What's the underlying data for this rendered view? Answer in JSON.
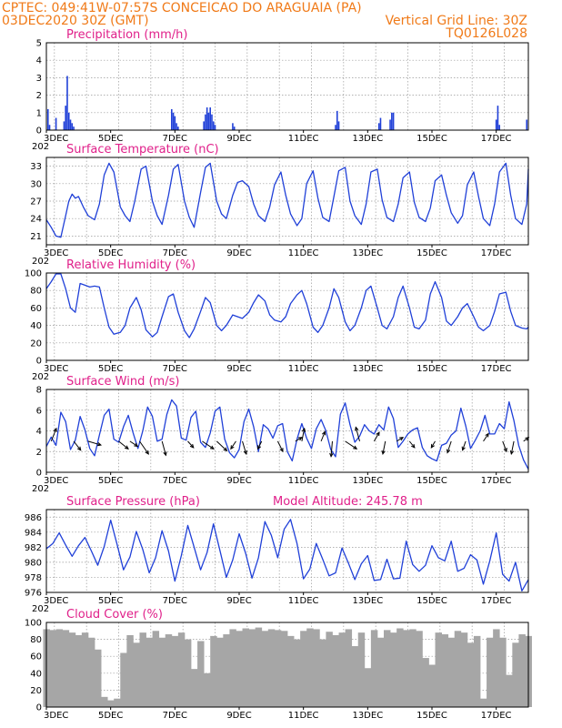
{
  "header": {
    "line1_left": "CPTEC:   049:41W-07:57S   CONCEICAO DO ARAGUAIA (PA)",
    "line2_left": "03DEC2020 30Z (GMT)",
    "line2_right": "Vertical Grid Line: 30Z",
    "line3_right": "TQ0126L028"
  },
  "colors": {
    "header": "#f07a18",
    "title": "#e0208a",
    "line": "#2040d8",
    "cloud": "#a6a6a6",
    "arrow": "#000000"
  },
  "x_axis": {
    "start_day": 3,
    "end_day": 18,
    "labels": [
      "3DEC",
      "5DEC",
      "7DEC",
      "9DEC",
      "11DEC",
      "13DEC",
      "15DEC",
      "17DEC"
    ],
    "label_days": [
      3,
      5,
      7,
      9,
      11,
      13,
      15,
      17
    ],
    "corner_label": "202"
  },
  "chart_data": [
    {
      "type": "bar",
      "title": "Precipitation (mm/h)",
      "ylim": [
        0,
        5
      ],
      "yticks": [
        0,
        1,
        2,
        3,
        4,
        5
      ],
      "x": [
        3.05,
        3.1,
        3.3,
        3.55,
        3.6,
        3.65,
        3.7,
        3.75,
        3.8,
        3.85,
        6.9,
        6.95,
        7.0,
        7.05,
        7.1,
        7.9,
        7.95,
        8.0,
        8.05,
        8.1,
        8.15,
        8.2,
        8.25,
        8.8,
        8.85,
        12.0,
        12.05,
        12.1,
        13.35,
        13.4,
        13.7,
        13.75,
        13.8,
        17.0,
        17.05,
        17.1,
        17.95
      ],
      "values": [
        1.2,
        0.3,
        0.7,
        0.5,
        1.4,
        3.1,
        1.0,
        0.6,
        0.4,
        0.2,
        1.2,
        1.0,
        0.8,
        0.4,
        0.2,
        0.5,
        0.9,
        1.3,
        1.0,
        1.3,
        0.9,
        0.5,
        0.3,
        0.4,
        0.2,
        0.3,
        1.1,
        0.5,
        0.4,
        0.7,
        0.6,
        1.0,
        1.0,
        0.6,
        1.4,
        0.3,
        0.6
      ]
    },
    {
      "type": "line",
      "title": "Surface Temperature (nC)",
      "ylim": [
        19.5,
        34.5
      ],
      "yticks": [
        21,
        24,
        27,
        30,
        33
      ],
      "x": [
        3.0,
        3.15,
        3.3,
        3.45,
        3.6,
        3.7,
        3.8,
        3.9,
        4.0,
        4.15,
        4.3,
        4.5,
        4.65,
        4.8,
        4.95,
        5.1,
        5.3,
        5.45,
        5.6,
        5.75,
        5.95,
        6.1,
        6.3,
        6.45,
        6.6,
        6.8,
        6.95,
        7.1,
        7.3,
        7.45,
        7.6,
        7.8,
        7.95,
        8.1,
        8.3,
        8.45,
        8.6,
        8.8,
        8.95,
        9.1,
        9.3,
        9.45,
        9.6,
        9.8,
        9.95,
        10.1,
        10.3,
        10.45,
        10.6,
        10.8,
        10.95,
        11.1,
        11.3,
        11.45,
        11.6,
        11.8,
        11.95,
        12.1,
        12.3,
        12.45,
        12.6,
        12.8,
        12.95,
        13.1,
        13.3,
        13.45,
        13.6,
        13.8,
        13.95,
        14.1,
        14.3,
        14.45,
        14.6,
        14.8,
        14.95,
        15.1,
        15.3,
        15.45,
        15.6,
        15.8,
        15.95,
        16.1,
        16.3,
        16.45,
        16.6,
        16.8,
        16.95,
        17.1,
        17.3,
        17.45,
        17.6,
        17.8,
        17.95,
        18.0
      ],
      "values": [
        23.8,
        22.5,
        21.0,
        20.8,
        24.5,
        27.0,
        28.2,
        27.5,
        27.8,
        26.0,
        24.5,
        23.8,
        26.5,
        31.5,
        33.5,
        32.0,
        26.0,
        24.5,
        23.5,
        27.0,
        32.5,
        33.0,
        27.0,
        24.5,
        23.0,
        28.0,
        32.5,
        33.3,
        27.0,
        24.2,
        22.5,
        28.5,
        32.8,
        33.5,
        27.0,
        24.8,
        24.0,
        28.0,
        30.2,
        30.5,
        29.5,
        26.5,
        24.5,
        23.5,
        26.0,
        29.8,
        32.0,
        28.0,
        24.8,
        22.8,
        24.0,
        30.0,
        32.2,
        27.5,
        24.2,
        23.5,
        27.8,
        32.2,
        32.8,
        27.0,
        24.5,
        23.0,
        26.5,
        32.0,
        32.5,
        27.2,
        24.2,
        23.5,
        26.5,
        31.0,
        32.0,
        26.8,
        24.2,
        23.5,
        25.8,
        30.5,
        31.5,
        28.0,
        25.0,
        23.2,
        24.5,
        29.8,
        32.0,
        27.8,
        24.0,
        22.8,
        26.5,
        32.0,
        33.5,
        28.0,
        24.0,
        23.0,
        26.5,
        32.5
      ]
    },
    {
      "type": "line",
      "title": "Relative Humidity (%)",
      "ylim": [
        0,
        100
      ],
      "yticks": [
        0,
        20,
        40,
        60,
        80,
        100
      ],
      "x": [
        3.0,
        3.15,
        3.3,
        3.45,
        3.6,
        3.75,
        3.9,
        4.05,
        4.2,
        4.35,
        4.5,
        4.65,
        4.8,
        4.95,
        5.1,
        5.3,
        5.45,
        5.6,
        5.8,
        5.95,
        6.1,
        6.3,
        6.45,
        6.6,
        6.8,
        6.95,
        7.1,
        7.3,
        7.45,
        7.6,
        7.8,
        7.95,
        8.1,
        8.3,
        8.45,
        8.6,
        8.8,
        8.95,
        9.1,
        9.3,
        9.45,
        9.6,
        9.8,
        9.95,
        10.1,
        10.3,
        10.45,
        10.6,
        10.8,
        10.95,
        11.1,
        11.3,
        11.45,
        11.6,
        11.8,
        11.95,
        12.1,
        12.3,
        12.45,
        12.6,
        12.8,
        12.95,
        13.1,
        13.3,
        13.45,
        13.6,
        13.8,
        13.95,
        14.1,
        14.3,
        14.45,
        14.6,
        14.8,
        14.95,
        15.1,
        15.3,
        15.45,
        15.6,
        15.8,
        15.95,
        16.1,
        16.3,
        16.45,
        16.6,
        16.8,
        16.95,
        17.1,
        17.3,
        17.45,
        17.6,
        17.8,
        17.95,
        18.0
      ],
      "values": [
        82,
        90,
        99,
        99,
        82,
        60,
        55,
        88,
        86,
        84,
        85,
        84,
        60,
        38,
        30,
        32,
        40,
        60,
        72,
        58,
        35,
        27,
        32,
        50,
        73,
        76,
        55,
        34,
        26,
        36,
        56,
        72,
        66,
        40,
        34,
        40,
        52,
        50,
        48,
        55,
        66,
        75,
        68,
        52,
        46,
        44,
        50,
        65,
        75,
        80,
        65,
        38,
        32,
        40,
        60,
        82,
        72,
        44,
        34,
        40,
        60,
        80,
        85,
        60,
        40,
        36,
        50,
        72,
        85,
        60,
        38,
        36,
        46,
        76,
        90,
        72,
        45,
        40,
        50,
        60,
        65,
        50,
        38,
        34,
        40,
        56,
        76,
        78,
        56,
        40,
        37,
        36,
        38
      ]
    },
    {
      "type": "line",
      "title": "Surface Wind (m/s)",
      "ylim": [
        0,
        8
      ],
      "yticks": [
        0,
        2,
        4,
        6,
        8
      ],
      "x": [
        3.0,
        3.15,
        3.3,
        3.45,
        3.6,
        3.75,
        3.9,
        4.05,
        4.2,
        4.35,
        4.5,
        4.65,
        4.8,
        4.95,
        5.1,
        5.25,
        5.4,
        5.55,
        5.7,
        5.85,
        6.0,
        6.15,
        6.3,
        6.45,
        6.6,
        6.75,
        6.9,
        7.05,
        7.2,
        7.35,
        7.5,
        7.65,
        7.8,
        7.95,
        8.1,
        8.25,
        8.4,
        8.55,
        8.7,
        8.85,
        9.0,
        9.15,
        9.3,
        9.45,
        9.6,
        9.75,
        9.9,
        10.05,
        10.2,
        10.35,
        10.5,
        10.65,
        10.8,
        10.95,
        11.1,
        11.25,
        11.4,
        11.55,
        11.7,
        11.85,
        12.0,
        12.15,
        12.3,
        12.45,
        12.6,
        12.75,
        12.9,
        13.05,
        13.2,
        13.35,
        13.5,
        13.65,
        13.8,
        13.95,
        14.1,
        14.25,
        14.4,
        14.55,
        14.7,
        14.85,
        15.0,
        15.15,
        15.3,
        15.45,
        15.6,
        15.75,
        15.9,
        16.05,
        16.2,
        16.35,
        16.5,
        16.65,
        16.8,
        16.95,
        17.1,
        17.25,
        17.4,
        17.55,
        17.7,
        17.85,
        18.0
      ],
      "values": [
        2.5,
        3.4,
        2.6,
        5.8,
        4.9,
        2.2,
        3.1,
        5.4,
        4.1,
        2.3,
        1.6,
        3.6,
        5.5,
        6.1,
        3.2,
        2.9,
        4.4,
        5.5,
        3.8,
        2.3,
        4.0,
        6.3,
        5.4,
        3.0,
        3.2,
        5.6,
        7.0,
        6.4,
        3.3,
        3.1,
        5.3,
        5.9,
        2.9,
        2.4,
        3.8,
        5.9,
        6.3,
        3.2,
        1.9,
        1.4,
        2.2,
        4.9,
        6.1,
        4.4,
        2.0,
        4.6,
        4.2,
        3.3,
        4.5,
        4.7,
        2.0,
        1.1,
        3.2,
        4.7,
        3.3,
        2.3,
        4.2,
        5.1,
        4.0,
        2.2,
        1.5,
        5.6,
        6.7,
        4.6,
        2.9,
        3.5,
        4.6,
        4.0,
        3.7,
        4.6,
        4.1,
        6.3,
        5.2,
        2.4,
        3.0,
        3.7,
        4.1,
        4.3,
        2.4,
        1.6,
        1.3,
        1.1,
        2.6,
        2.8,
        3.6,
        4.0,
        6.2,
        4.5,
        2.3,
        3.1,
        4.0,
        5.5,
        3.7,
        3.7,
        4.7,
        4.2,
        6.8,
        5.0,
        2.6,
        1.2,
        0.3
      ]
    },
    {
      "type": "line",
      "title": "Surface Pressure (hPa)",
      "subtitle": "Model Altitude: 245.78 m",
      "ylim": [
        976,
        987
      ],
      "yticks": [
        976,
        978,
        980,
        982,
        984,
        986
      ],
      "x": [
        3.0,
        3.2,
        3.4,
        3.6,
        3.8,
        4.0,
        4.2,
        4.4,
        4.6,
        4.8,
        5.0,
        5.2,
        5.4,
        5.6,
        5.8,
        6.0,
        6.2,
        6.4,
        6.6,
        6.8,
        7.0,
        7.2,
        7.4,
        7.6,
        7.8,
        8.0,
        8.2,
        8.4,
        8.6,
        8.8,
        9.0,
        9.2,
        9.4,
        9.6,
        9.8,
        10.0,
        10.2,
        10.4,
        10.6,
        10.8,
        11.0,
        11.2,
        11.4,
        11.6,
        11.8,
        12.0,
        12.2,
        12.4,
        12.6,
        12.8,
        13.0,
        13.2,
        13.4,
        13.6,
        13.8,
        14.0,
        14.2,
        14.4,
        14.6,
        14.8,
        15.0,
        15.2,
        15.4,
        15.6,
        15.8,
        16.0,
        16.2,
        16.4,
        16.6,
        16.8,
        17.0,
        17.2,
        17.4,
        17.6,
        17.8,
        18.0
      ],
      "values": [
        981.8,
        982.5,
        983.9,
        982.3,
        980.8,
        982.2,
        983.3,
        981.5,
        979.6,
        982.1,
        985.6,
        982.4,
        979.0,
        980.7,
        984.1,
        981.7,
        978.6,
        980.6,
        984.2,
        981.5,
        977.5,
        980.9,
        984.9,
        982.0,
        979.0,
        981.3,
        985.1,
        981.6,
        978.0,
        980.3,
        983.8,
        981.2,
        977.9,
        980.6,
        985.4,
        983.6,
        980.6,
        984.4,
        985.7,
        982.5,
        977.8,
        979.1,
        982.5,
        980.4,
        978.2,
        978.6,
        981.9,
        979.9,
        977.7,
        979.8,
        980.9,
        977.6,
        977.7,
        980.4,
        977.8,
        977.9,
        982.8,
        979.7,
        978.8,
        979.6,
        982.2,
        980.6,
        980.2,
        982.8,
        978.8,
        979.2,
        981.0,
        980.3,
        977.1,
        980.2,
        983.9,
        978.4,
        977.5,
        980.0,
        976.2,
        977.7
      ]
    },
    {
      "type": "area",
      "title": "Cloud Cover (%)",
      "ylim": [
        0,
        100
      ],
      "yticks": [
        0,
        20,
        40,
        60,
        80,
        100
      ],
      "x": [
        3.0,
        3.2,
        3.4,
        3.6,
        3.8,
        4.0,
        4.2,
        4.4,
        4.6,
        4.8,
        5.0,
        5.2,
        5.4,
        5.6,
        5.8,
        6.0,
        6.2,
        6.4,
        6.6,
        6.8,
        7.0,
        7.2,
        7.4,
        7.6,
        7.8,
        8.0,
        8.2,
        8.4,
        8.6,
        8.8,
        9.0,
        9.2,
        9.4,
        9.6,
        9.8,
        10.0,
        10.2,
        10.4,
        10.6,
        10.8,
        11.0,
        11.2,
        11.4,
        11.6,
        11.8,
        12.0,
        12.2,
        12.4,
        12.6,
        12.8,
        13.0,
        13.2,
        13.4,
        13.6,
        13.8,
        14.0,
        14.2,
        14.4,
        14.6,
        14.8,
        15.0,
        15.2,
        15.4,
        15.6,
        15.8,
        16.0,
        16.2,
        16.4,
        16.6,
        16.8,
        17.0,
        17.2,
        17.4,
        17.6,
        17.8,
        18.0
      ],
      "values": [
        92,
        91,
        92,
        91,
        88,
        85,
        88,
        82,
        68,
        12,
        8,
        10,
        64,
        85,
        76,
        88,
        82,
        90,
        82,
        86,
        84,
        88,
        80,
        45,
        78,
        40,
        84,
        82,
        86,
        92,
        90,
        93,
        92,
        94,
        90,
        92,
        91,
        90,
        84,
        80,
        90,
        93,
        92,
        80,
        89,
        85,
        88,
        92,
        72,
        88,
        46,
        91,
        82,
        91,
        88,
        93,
        91,
        92,
        90,
        58,
        50,
        88,
        86,
        82,
        90,
        88,
        76,
        84,
        10,
        82,
        92,
        82,
        38,
        76,
        86,
        84
      ]
    }
  ],
  "wind_arrows": {
    "x": [
      3.15,
      3.85,
      4.3,
      5.25,
      5.6,
      5.9,
      6.6,
      7.4,
      7.85,
      8.3,
      8.9,
      9.1,
      9.7,
      10.2,
      10.75,
      10.95,
      11.55,
      11.9,
      12.3,
      12.75,
      13.2,
      13.55,
      13.9,
      14.3,
      15.1,
      15.6,
      16.05,
      16.6,
      17.2,
      17.55,
      17.85
    ],
    "u": [
      0.8,
      1.1,
      2.0,
      1.5,
      1.2,
      1.4,
      0.6,
      0.9,
      1.8,
      1.6,
      -0.8,
      0.6,
      -0.6,
      0.8,
      1.0,
      0.4,
      0.6,
      -0.2,
      1.8,
      -0.6,
      0.8,
      -0.4,
      1.0,
      0.8,
      -0.6,
      -0.6,
      -0.5,
      0.8,
      0.6,
      -0.4,
      0.8
    ],
    "v": [
      -2.0,
      1.4,
      0.6,
      1.2,
      0.8,
      2.0,
      2.2,
      1.0,
      1.2,
      1.5,
      1.2,
      2.0,
      1.2,
      1.6,
      -0.6,
      -2.0,
      -1.5,
      2.4,
      1.2,
      -2.2,
      -1.4,
      2.0,
      -0.6,
      1.0,
      1.0,
      1.8,
      1.4,
      -1.2,
      1.6,
      2.0,
      -0.6
    ]
  }
}
